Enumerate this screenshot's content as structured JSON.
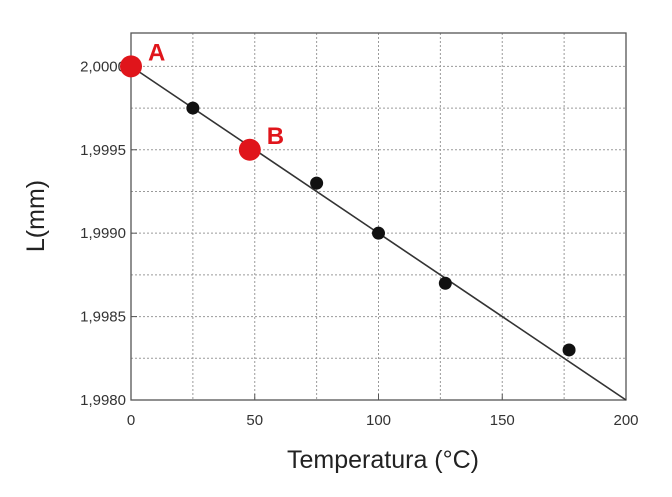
{
  "chart_data": {
    "type": "scatter",
    "title": "",
    "xlabel": "Temperatura (°C)",
    "ylabel": "L(mm)",
    "xlim": [
      0,
      200
    ],
    "ylim": [
      1.998,
      2.0002
    ],
    "x_ticks": [
      0,
      50,
      100,
      150,
      200
    ],
    "x_tick_labels": [
      "0",
      "50",
      "100",
      "150",
      "200"
    ],
    "y_ticks": [
      1.998,
      1.9985,
      1.999,
      1.9995,
      2.0
    ],
    "y_tick_labels": [
      "1,9980",
      "1,9985",
      "1,9990",
      "1,9995",
      "2,0000"
    ],
    "grid": true,
    "series": [
      {
        "color": "#111111",
        "points": [
          {
            "x": 25,
            "y": 1.99975
          },
          {
            "x": 75,
            "y": 1.9993
          },
          {
            "x": 100,
            "y": 1.999
          },
          {
            "x": 127,
            "y": 1.9987
          },
          {
            "x": 177,
            "y": 1.9983
          }
        ]
      }
    ],
    "trend_line": {
      "from": {
        "x": 0,
        "y": 2.0
      },
      "to": {
        "x": 200,
        "y": 1.998
      },
      "color": "#333333"
    },
    "highlighted_points": [
      {
        "label": "A",
        "x": 0,
        "y": 2.0,
        "color": "#e0151b"
      },
      {
        "label": "B",
        "x": 48,
        "y": 1.9995,
        "color": "#e0151b"
      }
    ]
  }
}
